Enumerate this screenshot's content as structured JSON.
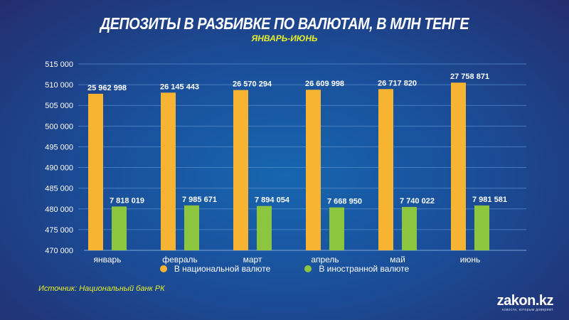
{
  "chart_data": {
    "type": "bar",
    "title": "ДЕПОЗИТЫ  В РАЗБИВКЕ ПО ВАЛЮТАМ, В МЛН ТЕНГЕ",
    "subtitle": "ЯНВАРЬ-ИЮНЬ",
    "categories": [
      "январь",
      "февраль",
      "март",
      "апрель",
      "май",
      "июнь"
    ],
    "series": [
      {
        "name": "В национальной валюте",
        "color": "#f7b432",
        "values": [
          25962998,
          26145443,
          26570294,
          26609998,
          26717820,
          27758871
        ],
        "labels": [
          "25 962 998",
          "26 145 443",
          "26 570 294",
          "26 609 998",
          "26 717 820",
          "27 758 871"
        ]
      },
      {
        "name": "В иностранной валюте",
        "color": "#8cc63f",
        "values": [
          7818019,
          7985671,
          7894054,
          7668950,
          7740022,
          7981581
        ],
        "labels": [
          "7 818 019",
          "7 985 671",
          "7 894 054",
          "7 668 950",
          "7 740 022",
          "7 981 581"
        ]
      }
    ],
    "yticks": [
      "470 000",
      "475 000",
      "480 000",
      "485 000",
      "490 000",
      "495 000",
      "500 000",
      "505 000",
      "510 000",
      "515 000"
    ],
    "ylim": [
      470000,
      515000
    ],
    "grid": true,
    "legend": "bottom"
  },
  "source": "Источник: Национальный банк РК",
  "logo": {
    "name": "zakon.kz",
    "tagline": "новости, которым доверяют"
  }
}
